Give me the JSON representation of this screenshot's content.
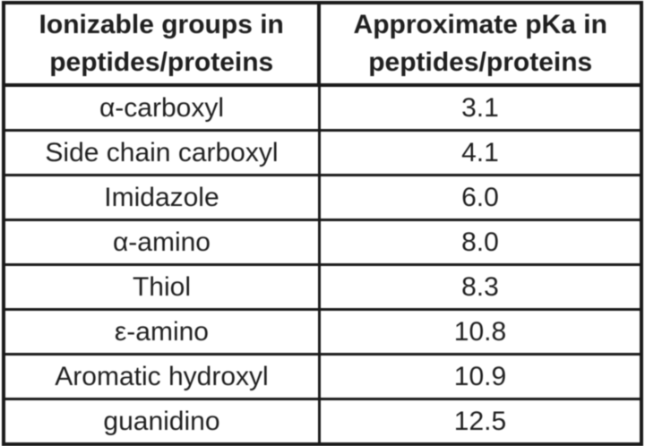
{
  "table": {
    "columns": [
      "Ionizable groups in peptides/proteins",
      "Approximate pKa in peptides/proteins"
    ],
    "rows": [
      {
        "group": "α-carboxyl",
        "pka": "3.1"
      },
      {
        "group": "Side chain carboxyl",
        "pka": "4.1"
      },
      {
        "group": "Imidazole",
        "pka": "6.0"
      },
      {
        "group": "α-amino",
        "pka": "8.0"
      },
      {
        "group": "Thiol",
        "pka": "8.3"
      },
      {
        "group": "ε-amino",
        "pka": "10.8"
      },
      {
        "group": "Aromatic hydroxyl",
        "pka": "10.9"
      },
      {
        "group": "guanidino",
        "pka": "12.5"
      }
    ],
    "colors": {
      "border": "#1a1a1a",
      "text": "#1f1f1f",
      "background": "#ffffff"
    }
  },
  "chart_data": {
    "type": "table",
    "title": "",
    "columns": [
      "Ionizable groups in peptides/proteins",
      "Approximate pKa in peptides/proteins"
    ],
    "rows": [
      [
        "α-carboxyl",
        3.1
      ],
      [
        "Side chain carboxyl",
        4.1
      ],
      [
        "Imidazole",
        6.0
      ],
      [
        "α-amino",
        8.0
      ],
      [
        "Thiol",
        8.3
      ],
      [
        "ε-amino",
        10.8
      ],
      [
        "Aromatic hydroxyl",
        10.9
      ],
      [
        "guanidino",
        12.5
      ]
    ]
  }
}
